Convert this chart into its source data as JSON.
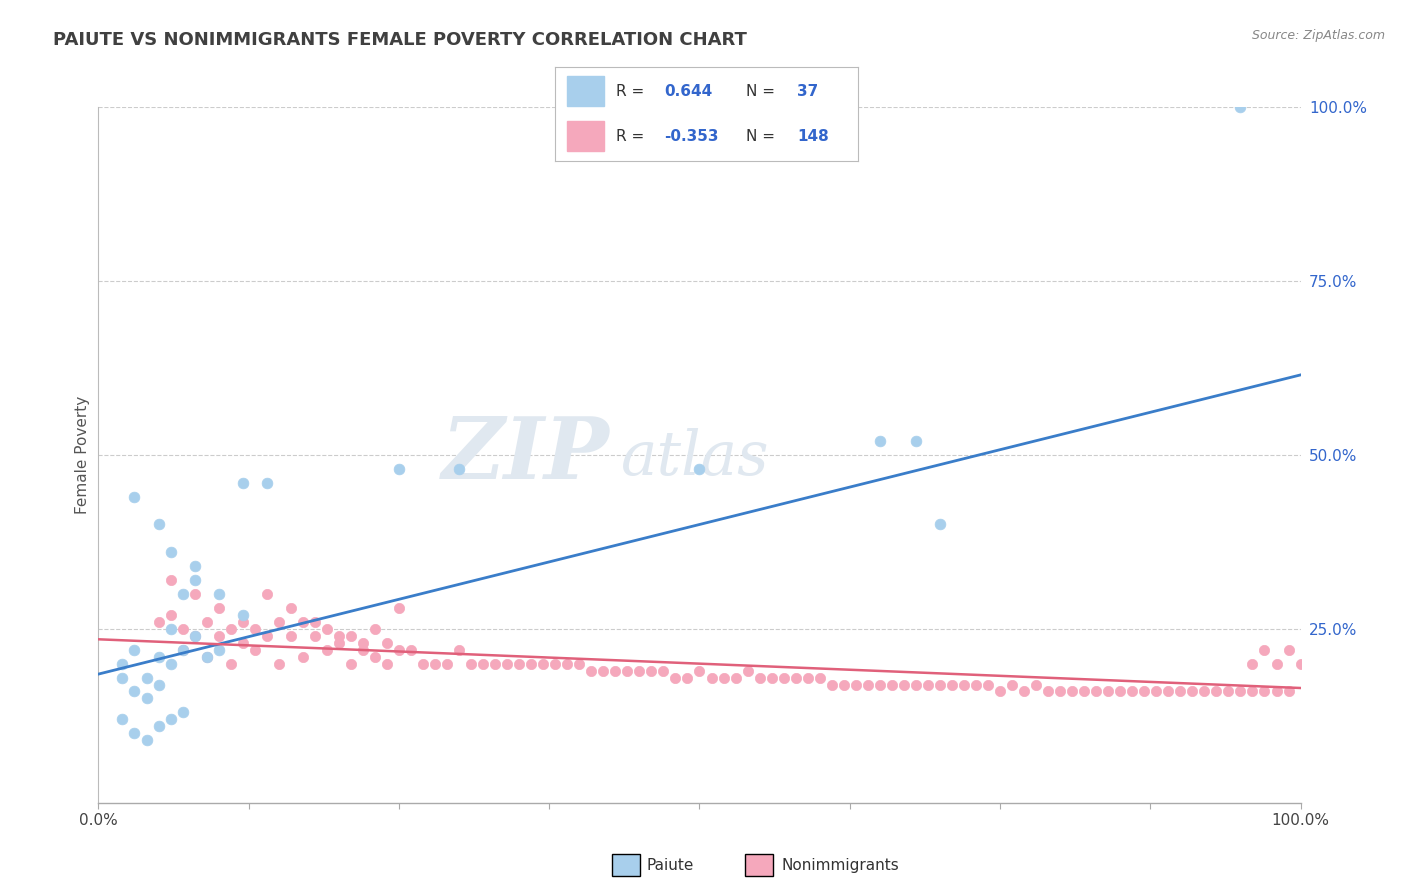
{
  "title": "PAIUTE VS NONIMMIGRANTS FEMALE POVERTY CORRELATION CHART",
  "source": "Source: ZipAtlas.com",
  "ylabel": "Female Poverty",
  "watermark_zip": "ZIP",
  "watermark_atlas": "atlas",
  "xlim": [
    0,
    1
  ],
  "ylim": [
    0,
    1
  ],
  "y_ticks_right": [
    0.25,
    0.5,
    0.75,
    1.0
  ],
  "y_tick_labels_right": [
    "25.0%",
    "50.0%",
    "75.0%",
    "100.0%"
  ],
  "paiute_color": "#A8CFEC",
  "nonimmigrant_color": "#F5A8BC",
  "paiute_line_color": "#3A7DC9",
  "nonimmigrant_line_color": "#E0607A",
  "background_color": "#FFFFFF",
  "grid_color": "#CCCCCC",
  "title_color": "#404040",
  "blue_text_color": "#3366CC",
  "paiute_scatter_x": [
    0.02,
    0.03,
    0.04,
    0.05,
    0.06,
    0.07,
    0.08,
    0.03,
    0.05,
    0.06,
    0.08,
    0.1,
    0.12,
    0.02,
    0.03,
    0.04,
    0.05,
    0.06,
    0.07,
    0.08,
    0.09,
    0.1,
    0.02,
    0.03,
    0.04,
    0.05,
    0.06,
    0.07,
    0.25,
    0.3,
    0.5,
    0.65,
    0.68,
    0.7,
    0.95,
    0.12,
    0.14
  ],
  "paiute_scatter_y": [
    0.2,
    0.22,
    0.18,
    0.21,
    0.25,
    0.3,
    0.34,
    0.44,
    0.4,
    0.36,
    0.32,
    0.3,
    0.27,
    0.18,
    0.16,
    0.15,
    0.17,
    0.2,
    0.22,
    0.24,
    0.21,
    0.22,
    0.12,
    0.1,
    0.09,
    0.11,
    0.12,
    0.13,
    0.48,
    0.48,
    0.48,
    0.52,
    0.52,
    0.4,
    1.0,
    0.46,
    0.46
  ],
  "nonimmigrant_scatter_x": [
    0.05,
    0.06,
    0.07,
    0.08,
    0.09,
    0.1,
    0.11,
    0.12,
    0.13,
    0.14,
    0.15,
    0.16,
    0.17,
    0.18,
    0.19,
    0.2,
    0.21,
    0.22,
    0.23,
    0.24,
    0.25,
    0.06,
    0.08,
    0.1,
    0.12,
    0.14,
    0.16,
    0.18,
    0.2,
    0.22,
    0.24,
    0.26,
    0.28,
    0.3,
    0.32,
    0.34,
    0.36,
    0.38,
    0.4,
    0.42,
    0.44,
    0.46,
    0.48,
    0.5,
    0.52,
    0.54,
    0.56,
    0.58,
    0.6,
    0.62,
    0.64,
    0.66,
    0.68,
    0.7,
    0.72,
    0.74,
    0.76,
    0.78,
    0.8,
    0.82,
    0.84,
    0.86,
    0.88,
    0.9,
    0.92,
    0.94,
    0.96,
    0.98,
    0.07,
    0.09,
    0.11,
    0.13,
    0.15,
    0.17,
    0.19,
    0.21,
    0.23,
    0.25,
    0.27,
    0.29,
    0.31,
    0.33,
    0.35,
    0.37,
    0.39,
    0.41,
    0.43,
    0.45,
    0.47,
    0.49,
    0.51,
    0.53,
    0.55,
    0.57,
    0.59,
    0.61,
    0.63,
    0.65,
    0.67,
    0.69,
    0.71,
    0.73,
    0.75,
    0.77,
    0.79,
    0.81,
    0.83,
    0.85,
    0.87,
    0.89,
    0.91,
    0.93,
    0.95,
    0.97,
    0.99,
    0.96,
    0.97,
    0.98,
    0.99,
    1.0
  ],
  "nonimmigrant_scatter_y": [
    0.26,
    0.27,
    0.25,
    0.24,
    0.26,
    0.24,
    0.25,
    0.23,
    0.25,
    0.24,
    0.26,
    0.24,
    0.26,
    0.24,
    0.25,
    0.23,
    0.24,
    0.23,
    0.25,
    0.23,
    0.28,
    0.32,
    0.3,
    0.28,
    0.26,
    0.3,
    0.28,
    0.26,
    0.24,
    0.22,
    0.2,
    0.22,
    0.2,
    0.22,
    0.2,
    0.2,
    0.2,
    0.2,
    0.2,
    0.19,
    0.19,
    0.19,
    0.18,
    0.19,
    0.18,
    0.19,
    0.18,
    0.18,
    0.18,
    0.17,
    0.17,
    0.17,
    0.17,
    0.17,
    0.17,
    0.17,
    0.17,
    0.17,
    0.16,
    0.16,
    0.16,
    0.16,
    0.16,
    0.16,
    0.16,
    0.16,
    0.16,
    0.16,
    0.22,
    0.21,
    0.2,
    0.22,
    0.2,
    0.21,
    0.22,
    0.2,
    0.21,
    0.22,
    0.2,
    0.2,
    0.2,
    0.2,
    0.2,
    0.2,
    0.2,
    0.19,
    0.19,
    0.19,
    0.19,
    0.18,
    0.18,
    0.18,
    0.18,
    0.18,
    0.18,
    0.17,
    0.17,
    0.17,
    0.17,
    0.17,
    0.17,
    0.17,
    0.16,
    0.16,
    0.16,
    0.16,
    0.16,
    0.16,
    0.16,
    0.16,
    0.16,
    0.16,
    0.16,
    0.16,
    0.16,
    0.2,
    0.22,
    0.2,
    0.22,
    0.2
  ],
  "paiute_trend_x": [
    0.0,
    1.0
  ],
  "paiute_trend_y": [
    0.185,
    0.615
  ],
  "nonimmigrant_trend_x": [
    0.0,
    1.0
  ],
  "nonimmigrant_trend_y": [
    0.235,
    0.165
  ]
}
